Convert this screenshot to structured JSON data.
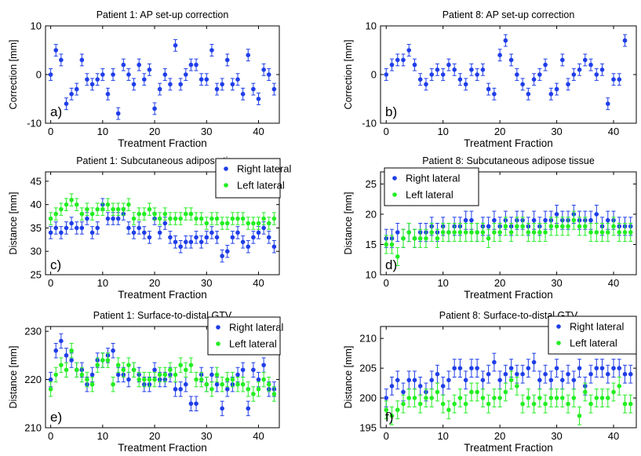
{
  "chart_data": [
    {
      "id": "a",
      "panel_label": "a)",
      "type": "scatter",
      "title": "Patient 1: AP set-up correction",
      "xlabel": "Treatment Fraction",
      "ylabel": "Correction [mm]",
      "xlim": [
        -1,
        44
      ],
      "ylim": [
        -10,
        10
      ],
      "xticks": [
        0,
        10,
        20,
        30,
        40
      ],
      "yticks": [
        -10,
        0,
        10
      ],
      "error": 1.2,
      "legend": null,
      "series": [
        {
          "color": "#1f3ee8",
          "values": [
            0,
            5,
            3,
            -6,
            -4,
            -3,
            3,
            -1,
            -2,
            -1,
            0,
            -4,
            0,
            -8,
            2,
            0,
            -2,
            2,
            -1,
            1,
            -7,
            -3,
            0,
            -2,
            6,
            -2,
            0,
            2,
            2,
            -1,
            -1,
            5,
            -3,
            -2,
            3,
            -2,
            -1,
            -4,
            4,
            -3,
            -5,
            1,
            0,
            -3
          ]
        }
      ]
    },
    {
      "id": "b",
      "panel_label": "b)",
      "type": "scatter",
      "title": "Patient 8: AP set-up correction",
      "xlabel": "Treatment Fraction",
      "ylabel": "Correction [mm]",
      "xlim": [
        -1,
        44
      ],
      "ylim": [
        -10,
        10
      ],
      "xticks": [
        0,
        10,
        20,
        30,
        40
      ],
      "yticks": [
        -10,
        0,
        10
      ],
      "error": 1.2,
      "legend": null,
      "series": [
        {
          "color": "#1f3ee8",
          "values": [
            0,
            2,
            3,
            3,
            5,
            2,
            -1,
            -2,
            0,
            1,
            0,
            2,
            1,
            -1,
            -2,
            1,
            0,
            1,
            -3,
            -4,
            4,
            7,
            3,
            0,
            -2,
            -4,
            -1,
            0,
            2,
            -4,
            -3,
            3,
            -2,
            0,
            1,
            3,
            2,
            0,
            1,
            -6,
            -1,
            -1,
            7,
            null
          ]
        }
      ]
    },
    {
      "id": "c",
      "panel_label": "c)",
      "type": "scatter",
      "title": "Patient 1: Subcutaneous adipose tissue",
      "xlabel": "Treatment Fraction",
      "ylabel": "Distance [mm]",
      "xlim": [
        -1,
        44
      ],
      "ylim": [
        25,
        47
      ],
      "xticks": [
        0,
        10,
        20,
        30,
        40
      ],
      "yticks": [
        25,
        30,
        35,
        40,
        45
      ],
      "error": 1.3,
      "legend": {
        "placement": "top-right"
      },
      "series": [
        {
          "name": "Right lateral",
          "color": "#1f3ee8",
          "values": [
            34,
            35,
            34,
            35,
            36,
            35,
            35,
            37,
            34,
            35,
            40,
            37,
            37,
            37,
            38,
            35,
            34,
            35,
            34,
            33,
            37,
            34,
            36,
            33,
            32,
            31,
            32,
            32,
            33,
            32,
            33,
            34,
            33,
            29,
            30,
            33,
            34,
            32,
            31,
            33,
            34,
            35,
            33,
            31
          ]
        },
        {
          "name": "Left lateral",
          "color": "#22ee22",
          "values": [
            37,
            38,
            39,
            40,
            41,
            40,
            38,
            39,
            38,
            39,
            39,
            40,
            39,
            39,
            39,
            40,
            37,
            38,
            38,
            39,
            38,
            37,
            38,
            37,
            37,
            37,
            38,
            38,
            37,
            37,
            36,
            37,
            37,
            36,
            36,
            37,
            37,
            37,
            36,
            36,
            36,
            37,
            36,
            37
          ]
        }
      ]
    },
    {
      "id": "d",
      "panel_label": "d)",
      "type": "scatter",
      "title": "Patient 8: Subcutaneous adipose tissue",
      "xlabel": "Treatment Fraction",
      "ylabel": "Distance [mm]",
      "xlim": [
        -1,
        44
      ],
      "ylim": [
        10,
        27
      ],
      "xticks": [
        0,
        10,
        20,
        30,
        40
      ],
      "yticks": [
        10,
        15,
        20,
        25
      ],
      "error": 1.5,
      "legend": {
        "placement": "top-left"
      },
      "series": [
        {
          "name": "Right lateral",
          "color": "#1f3ee8",
          "values": [
            16,
            16,
            17,
            16,
            17,
            16,
            17,
            17,
            18,
            17,
            18,
            17,
            18,
            18,
            19,
            19,
            17,
            18,
            18,
            19,
            18,
            19,
            18,
            19,
            19,
            18,
            19,
            18,
            19,
            19,
            20,
            19,
            19,
            20,
            19,
            19,
            19,
            20,
            18,
            19,
            19,
            18,
            18,
            18
          ]
        },
        {
          "name": "Left lateral",
          "color": "#22ee22",
          "values": [
            15,
            15,
            13,
            16,
            17,
            16,
            16,
            16,
            17,
            16,
            17,
            17,
            17,
            17,
            17,
            17,
            17,
            17,
            16,
            17,
            17,
            18,
            17,
            18,
            18,
            17,
            17,
            17,
            17,
            18,
            18,
            18,
            18,
            19,
            18,
            18,
            17,
            17,
            17,
            17,
            18,
            17,
            17,
            17
          ]
        }
      ]
    },
    {
      "id": "e",
      "panel_label": "e)",
      "type": "scatter",
      "title": "Patient 1: Surface-to-distal GTV",
      "xlabel": "Treatment Fraction",
      "ylabel": "Distance [mm]",
      "xlim": [
        -1,
        44
      ],
      "ylim": [
        210,
        231
      ],
      "xticks": [
        0,
        10,
        20,
        30,
        40
      ],
      "yticks": [
        210,
        220,
        230
      ],
      "error": 1.5,
      "legend": {
        "placement": "top-right"
      },
      "series": [
        {
          "name": "Right lateral",
          "color": "#1f3ee8",
          "values": [
            220,
            226,
            228,
            225,
            224,
            222,
            222,
            219,
            221,
            224,
            224,
            225,
            226,
            221,
            221,
            220,
            222,
            221,
            219,
            219,
            222,
            220,
            220,
            221,
            218,
            218,
            219,
            215,
            215,
            221,
            219,
            221,
            219,
            214,
            218,
            219,
            221,
            222,
            214,
            222,
            220,
            223,
            218,
            218
          ]
        },
        {
          "name": "Left lateral",
          "color": "#22ee22",
          "values": [
            218,
            221,
            223,
            222,
            226,
            222,
            221,
            220,
            219,
            223,
            224,
            224,
            219,
            223,
            222,
            223,
            222,
            220,
            220,
            220,
            220,
            221,
            221,
            222,
            221,
            223,
            222,
            223,
            220,
            220,
            219,
            218,
            221,
            219,
            220,
            220,
            219,
            219,
            218,
            217,
            218,
            220,
            219,
            217
          ]
        }
      ]
    },
    {
      "id": "f",
      "panel_label": "f)",
      "type": "scatter",
      "title": "Patient 8: Surface-to-distal GTV",
      "xlabel": "Treatment Fraction",
      "ylabel": "Distance [mm]",
      "xlim": [
        -1,
        44
      ],
      "ylim": [
        195,
        212
      ],
      "xticks": [
        0,
        10,
        20,
        30,
        40
      ],
      "yticks": [
        195,
        200,
        205,
        210
      ],
      "error": 1.5,
      "legend": {
        "placement": "top-right"
      },
      "series": [
        {
          "name": "Right lateral",
          "color": "#1f3ee8",
          "values": [
            200,
            202,
            203,
            201,
            203,
            203,
            202,
            201,
            203,
            204,
            202,
            203,
            205,
            205,
            203,
            205,
            205,
            203,
            204,
            206,
            203,
            204,
            205,
            204,
            204,
            205,
            206,
            203,
            204,
            203,
            205,
            203,
            204,
            203,
            205,
            202,
            204,
            205,
            205,
            204,
            205,
            205,
            204,
            204
          ]
        },
        {
          "name": "Left lateral",
          "color": "#22ee22",
          "values": [
            198,
            197,
            198,
            199,
            200,
            200,
            199,
            200,
            200,
            201,
            199,
            198,
            199,
            200,
            199,
            201,
            201,
            200,
            199,
            200,
            200,
            201,
            203,
            202,
            199,
            200,
            199,
            200,
            199,
            200,
            200,
            200,
            199,
            200,
            197,
            201,
            199,
            200,
            200,
            200,
            201,
            202,
            199,
            199
          ]
        }
      ]
    }
  ]
}
